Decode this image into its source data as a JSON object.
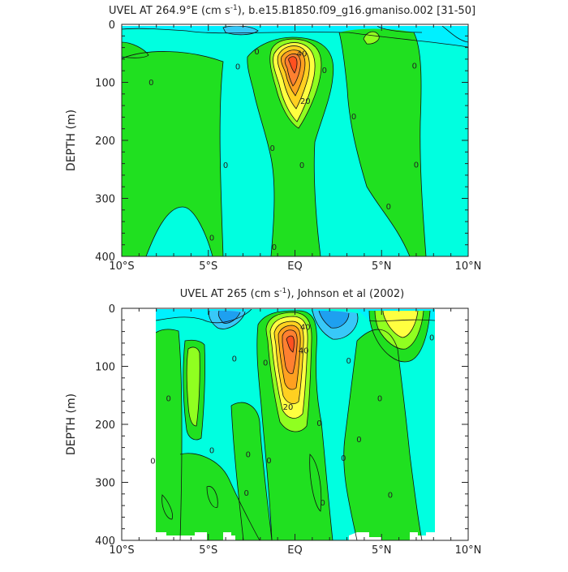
{
  "figure": {
    "background": "#ffffff"
  },
  "palette": {
    "blue": "#1ea0f0",
    "sky": "#38c8f8",
    "cyan": "#00f0ff",
    "aqua": "#00ffe0",
    "green": "#20e020",
    "lime": "#90ff20",
    "yellow": "#ffff40",
    "gold": "#ffd020",
    "orange": "#ffa020",
    "darkorange": "#ff8030",
    "red": "#ff5020"
  },
  "chart_data": [
    {
      "type": "contour",
      "title_main": "UVEL AT 264.9°E (cm s",
      "title_sup": "-1",
      "title_rest": "), b.e15.B1850.f09_g16.gmaniso.002 [31-50]",
      "xlabel": "",
      "ylabel": "DEPTH (m)",
      "x_range": [
        -10,
        10
      ],
      "y_range": [
        0,
        400
      ],
      "y_inverted": true,
      "x_ticks": [
        -10,
        -5,
        0,
        5,
        10
      ],
      "x_tick_labels": [
        "10°S",
        "5°S",
        "EQ",
        "5°N",
        "10°N"
      ],
      "y_ticks": [
        0,
        100,
        200,
        300,
        400
      ],
      "y_tick_labels": [
        "0",
        "100",
        "200",
        "300",
        "400"
      ],
      "contour_labels": [
        {
          "text": "0",
          "x": -8.3,
          "y": 100
        },
        {
          "text": "0",
          "x": -4.8,
          "y": 368
        },
        {
          "text": "0",
          "x": -4.0,
          "y": 243
        },
        {
          "text": "0",
          "x": -3.3,
          "y": 73
        },
        {
          "text": "0",
          "x": -2.2,
          "y": 47
        },
        {
          "text": "0",
          "x": -1.3,
          "y": 213
        },
        {
          "text": "0",
          "x": -1.2,
          "y": 384
        },
        {
          "text": "0",
          "x": 0.4,
          "y": 243
        },
        {
          "text": "0",
          "x": 1.7,
          "y": 79
        },
        {
          "text": "0",
          "x": 3.4,
          "y": 159
        },
        {
          "text": "0",
          "x": 5.4,
          "y": 314
        },
        {
          "text": "0",
          "x": 6.9,
          "y": 71
        },
        {
          "text": "0",
          "x": 7.0,
          "y": 242
        },
        {
          "text": "40",
          "x": 0.4,
          "y": 50
        },
        {
          "text": "20",
          "x": 0.6,
          "y": 132
        }
      ]
    },
    {
      "type": "contour",
      "title_main": "UVEL AT 265 (cm s",
      "title_sup": "-1",
      "title_rest": "), Johnson et al (2002)",
      "xlabel": "",
      "ylabel": "DEPTH (m)",
      "x_range": [
        -10,
        10
      ],
      "y_range": [
        0,
        400
      ],
      "y_inverted": true,
      "x_ticks": [
        -10,
        -5,
        0,
        5,
        10
      ],
      "x_tick_labels": [
        "10°S",
        "5°S",
        "EQ",
        "5°N",
        "10°N"
      ],
      "y_ticks": [
        0,
        100,
        200,
        300,
        400
      ],
      "y_tick_labels": [
        "0",
        "100",
        "200",
        "300",
        "400"
      ],
      "contour_labels": [
        {
          "text": "0",
          "x": -7.3,
          "y": 155
        },
        {
          "text": "0",
          "x": -8.2,
          "y": 263
        },
        {
          "text": "0",
          "x": -4.8,
          "y": 245
        },
        {
          "text": "0",
          "x": -3.5,
          "y": 87
        },
        {
          "text": "0",
          "x": -2.7,
          "y": 252
        },
        {
          "text": "0",
          "x": -2.8,
          "y": 318
        },
        {
          "text": "0",
          "x": -1.7,
          "y": 94
        },
        {
          "text": "0",
          "x": -1.5,
          "y": 262
        },
        {
          "text": "0",
          "x": 1.4,
          "y": 198
        },
        {
          "text": "0",
          "x": 1.6,
          "y": 335
        },
        {
          "text": "0",
          "x": 3.1,
          "y": 90
        },
        {
          "text": "0",
          "x": 2.8,
          "y": 258
        },
        {
          "text": "0",
          "x": 3.7,
          "y": 226
        },
        {
          "text": "0",
          "x": 4.9,
          "y": 155
        },
        {
          "text": "0",
          "x": 5.5,
          "y": 322
        },
        {
          "text": "0",
          "x": 7.9,
          "y": 50
        },
        {
          "text": "40",
          "x": 0.6,
          "y": 32
        },
        {
          "text": "40",
          "x": 0.5,
          "y": 73
        },
        {
          "text": "20",
          "x": -0.4,
          "y": 170
        }
      ]
    }
  ]
}
